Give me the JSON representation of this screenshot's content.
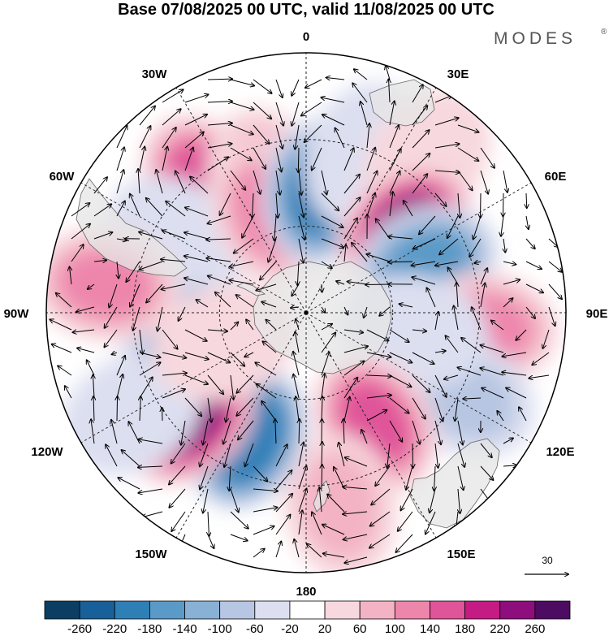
{
  "title": "Base 07/08/2025 00 UTC, valid 11/08/2025 00 UTC",
  "brand": "MODES",
  "brand_mark": "®",
  "lon_labels": {
    "l0": "0",
    "l30e": "30E",
    "l60e": "60E",
    "l90e": "90E",
    "l120e": "120E",
    "l150e": "150E",
    "l180": "180",
    "l150w": "150W",
    "l120w": "120W",
    "l90w": "90W",
    "l60w": "60W",
    "l30w": "30W"
  },
  "reference_vector": {
    "label": "30"
  },
  "colorbar": {
    "labels": [
      "-260",
      "-220",
      "-180",
      "-140",
      "-100",
      "-60",
      "-20",
      "20",
      "60",
      "100",
      "140",
      "180",
      "220",
      "260"
    ],
    "colors": [
      "#0c3e63",
      "#17609a",
      "#2f7fb7",
      "#5a9ac8",
      "#89b1d6",
      "#b7c6e2",
      "#dcdff0",
      "#ffffff",
      "#f7d8de",
      "#f3b3c4",
      "#ee86ac",
      "#e0549a",
      "#c51b85",
      "#8e0e7e",
      "#4d0b62"
    ]
  },
  "anomalies": [
    {
      "lon": 322,
      "lat": -33,
      "value": 160
    },
    {
      "lon": 300,
      "lat": -38,
      "value": -40
    },
    {
      "lon": 343,
      "lat": -42,
      "value": 60
    },
    {
      "lon": 340,
      "lat": -53,
      "value": 100
    },
    {
      "lon": 6,
      "lat": -48,
      "value": -200
    },
    {
      "lon": 20,
      "lat": -32,
      "value": -40
    },
    {
      "lon": 38,
      "lat": -22,
      "value": 40
    },
    {
      "lon": 50,
      "lat": -45,
      "value": 240
    },
    {
      "lon": 68,
      "lat": -45,
      "value": -150
    },
    {
      "lon": 95,
      "lat": -28,
      "value": 120
    },
    {
      "lon": 118,
      "lat": -28,
      "value": -90
    },
    {
      "lon": 100,
      "lat": -52,
      "value": -40
    },
    {
      "lon": 148,
      "lat": -45,
      "value": 170
    },
    {
      "lon": 170,
      "lat": -22,
      "value": 60
    },
    {
      "lon": 205,
      "lat": -42,
      "value": -220
    },
    {
      "lon": 228,
      "lat": -35,
      "value": 250
    },
    {
      "lon": 240,
      "lat": -20,
      "value": -40
    },
    {
      "lon": 262,
      "lat": -50,
      "value": -110
    },
    {
      "lon": 278,
      "lat": -20,
      "value": 100
    },
    {
      "lon": 250,
      "lat": -60,
      "value": 40
    }
  ]
}
